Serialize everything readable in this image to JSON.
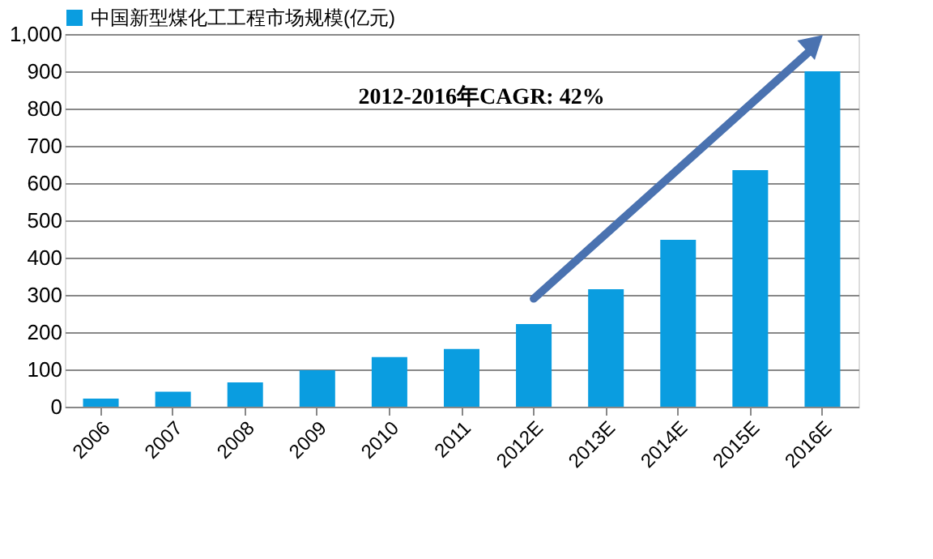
{
  "chart_data": {
    "type": "bar",
    "categories": [
      "2006",
      "2007",
      "2008",
      "2009",
      "2010",
      "2011",
      "2012E",
      "2013E",
      "2014E",
      "2015E",
      "2016E"
    ],
    "series": [
      {
        "name": "中国新型煤化工工程市场规模(亿元)",
        "color": "#0a9de0",
        "values": [
          22,
          40,
          65,
          98,
          133,
          155,
          222,
          315,
          448,
          635,
          900
        ]
      }
    ],
    "ylim": [
      0,
      1000
    ],
    "yticks": [
      {
        "value": 0,
        "label": "0"
      },
      {
        "value": 100,
        "label": "100"
      },
      {
        "value": 200,
        "label": "200"
      },
      {
        "value": 300,
        "label": "300"
      },
      {
        "value": 400,
        "label": "400"
      },
      {
        "value": 500,
        "label": "500"
      },
      {
        "value": 600,
        "label": "600"
      },
      {
        "value": 700,
        "label": "700"
      },
      {
        "value": 800,
        "label": "800"
      },
      {
        "value": 900,
        "label": "900"
      },
      {
        "value": 1000,
        "label": "1,000"
      }
    ],
    "grid": "y",
    "legend": "top",
    "annotations": [
      "2012-2016年CAGR: 42%"
    ]
  }
}
